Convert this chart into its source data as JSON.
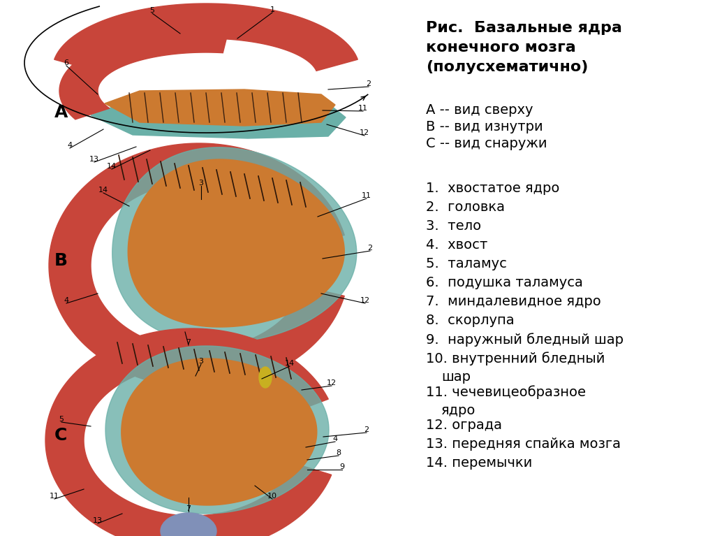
{
  "bg_color": "#ffffff",
  "text_color": "#000000",
  "title_line1": "Рис.  Базальные ядра",
  "title_line2": "конечного мозга",
  "title_line3": "(полусхематично)",
  "title_fontsize": 16,
  "views": [
    "А -- вид сверху",
    "В -- вид изнутри",
    "С -- вид снаружи"
  ],
  "views_fontsize": 14,
  "legend_items": [
    "1.  хвостатое ядро",
    "2.  головка",
    "3.  тело",
    "4.  хвост",
    "5.  таламус",
    "6.  подушка таламуса",
    "7.  миндалевидное ядро",
    "8.  скорлупа",
    "9.  наружный бледный шар",
    "10. внутренний бледный",
    "    шар",
    "11. чечевицеобразное",
    "    ядро",
    "12. ограда",
    "13. передняя спайка мозга",
    "14. перемычки"
  ],
  "legend_fontsize": 14,
  "red_caudate": "#c8453a",
  "red_light": "#d96055",
  "orange_thalamus": "#cc7a30",
  "orange_light": "#e09040",
  "teal_color": "#6ab0a8",
  "blue_amygdala": "#8090b8",
  "yellow_commissure": "#c8b020",
  "black": "#000000",
  "gray_line": "#555555"
}
